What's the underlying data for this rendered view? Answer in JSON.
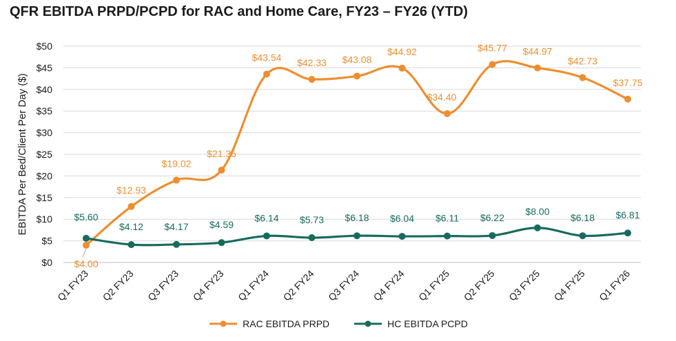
{
  "chart_data": {
    "type": "line",
    "title": "QFR EBITDA PRPD/PCPD for RAC and Home Care, FY23 – FY26 (YTD)",
    "xlabel": "",
    "ylabel": "EBITDA Per Bed/Client Per Day ($)",
    "ylim": [
      0,
      50
    ],
    "yticks": [
      0,
      5,
      10,
      15,
      20,
      25,
      30,
      35,
      40,
      45,
      50
    ],
    "ytick_labels": [
      "$0",
      "$5",
      "$10",
      "$15",
      "$20",
      "$25",
      "$30",
      "$35",
      "$40",
      "$45",
      "$50"
    ],
    "grid": true,
    "legend_position": "bottom",
    "categories": [
      "Q1 FY23",
      "Q2 FY23",
      "Q3 FY23",
      "Q4 FY23",
      "Q1 FY24",
      "Q2 FY24",
      "Q3 FY24",
      "Q4 FY24",
      "Q1 FY25",
      "Q2 FY25",
      "Q3 FY25",
      "Q4 FY25",
      "Q1 FY26"
    ],
    "series": [
      {
        "name": "RAC EBITDA PRPD",
        "color": "#ED8E2F",
        "values": [
          4.0,
          12.93,
          19.02,
          21.35,
          43.54,
          42.33,
          43.08,
          44.92,
          34.4,
          45.77,
          44.97,
          42.73,
          37.75
        ],
        "labels": [
          "$4.00",
          "$12.93",
          "$19.02",
          "$21.35",
          "$43.54",
          "$42.33",
          "$43.08",
          "$44.92",
          "$34.40",
          "$45.77",
          "$44.97",
          "$42.73",
          "$37.75"
        ]
      },
      {
        "name": "HC EBITDA PCPD",
        "color": "#176B5E",
        "values": [
          5.6,
          4.12,
          4.17,
          4.59,
          6.14,
          5.73,
          6.18,
          6.04,
          6.11,
          6.22,
          8.0,
          6.18,
          6.81
        ],
        "labels": [
          "$5.60",
          "$4.12",
          "$4.17",
          "$4.59",
          "$6.14",
          "$5.73",
          "$6.18",
          "$6.04",
          "$6.11",
          "$6.22",
          "$8.00",
          "$6.18",
          "$6.81"
        ]
      }
    ]
  }
}
